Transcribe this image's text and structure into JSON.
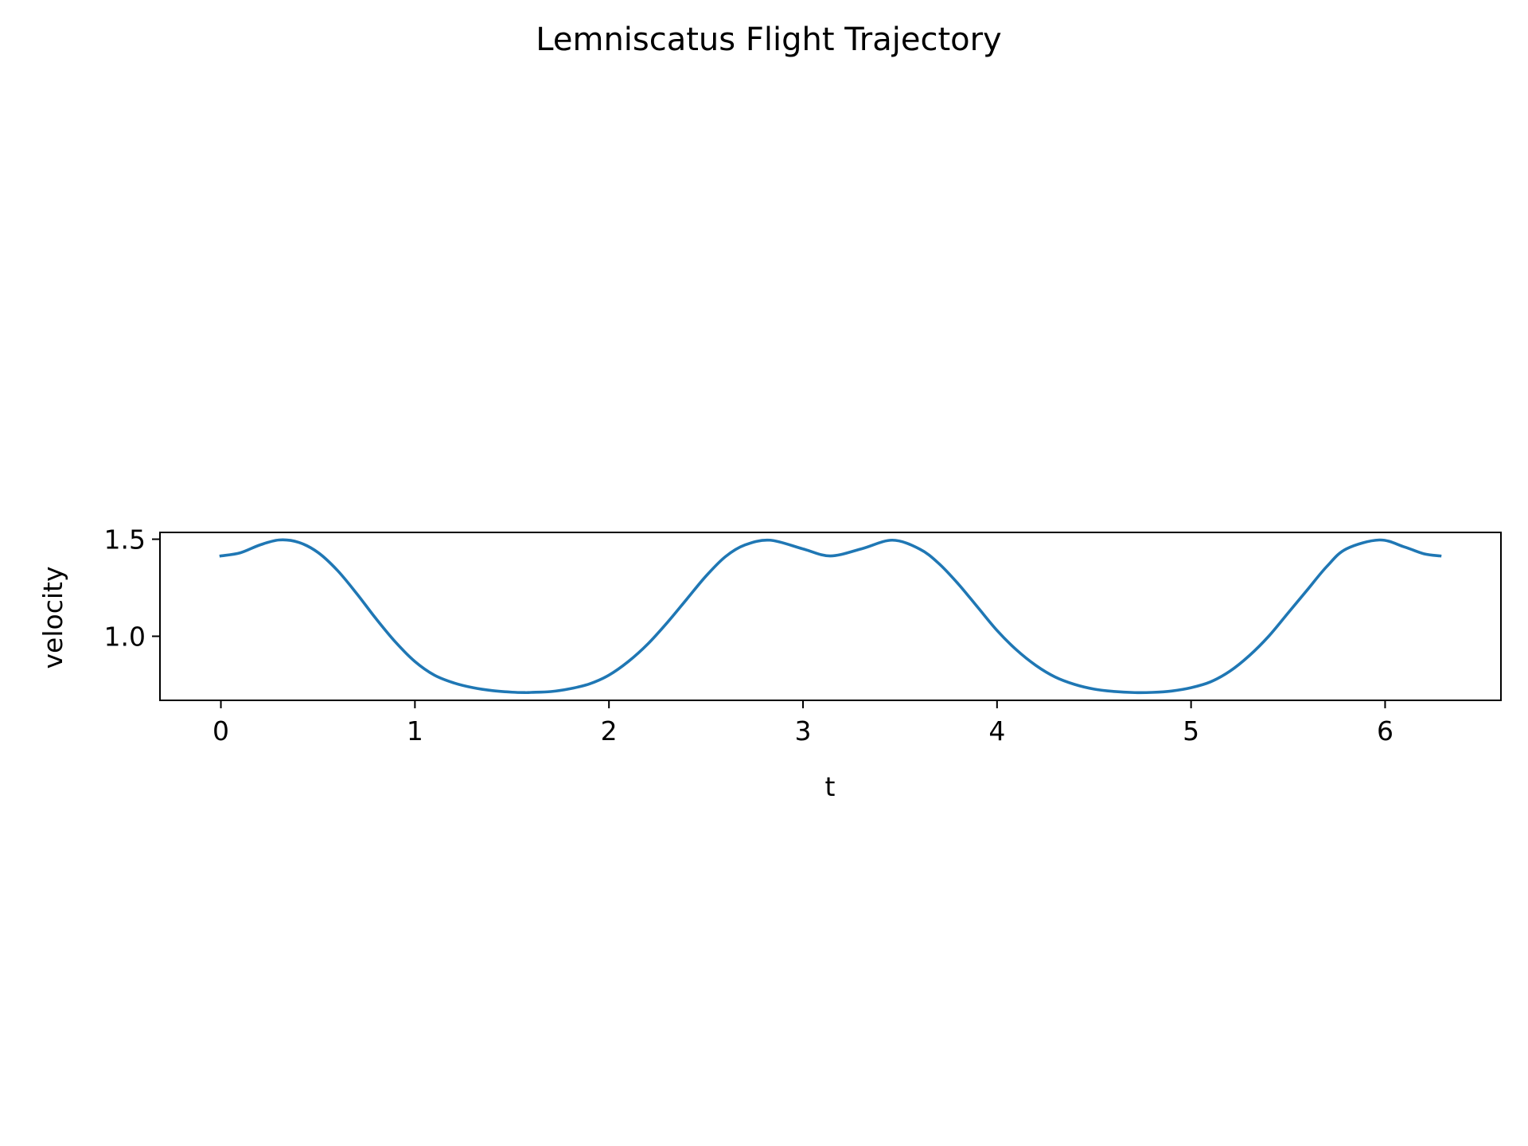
{
  "chart_data": {
    "type": "line",
    "title": "Lemniscatus Flight Trajectory",
    "xlabel": "t",
    "ylabel": "velocity",
    "xlim": [
      -0.314,
      6.597
    ],
    "ylim": [
      0.67,
      1.535
    ],
    "xticks": [
      0,
      1,
      2,
      3,
      4,
      5,
      6
    ],
    "xtick_labels": [
      "0",
      "1",
      "2",
      "3",
      "4",
      "5",
      "6"
    ],
    "yticks": [
      1.0,
      1.5
    ],
    "ytick_labels": [
      "1.0",
      "1.5"
    ],
    "grid": false,
    "legend": "none",
    "series": [
      {
        "color": "#1f77b4",
        "x": [
          0,
          0.1,
          0.2,
          0.3,
          0.4,
          0.5,
          0.6,
          0.7,
          0.8,
          0.9,
          1.0,
          1.1,
          1.2,
          1.3,
          1.4,
          1.5,
          1.57,
          1.6,
          1.7,
          1.8,
          1.9,
          2.0,
          2.1,
          2.2,
          2.3,
          2.4,
          2.5,
          2.6,
          2.7,
          2.83,
          3.0,
          3.14,
          3.3,
          3.46,
          3.6,
          3.7,
          3.8,
          3.9,
          4.0,
          4.1,
          4.2,
          4.3,
          4.4,
          4.5,
          4.6,
          4.71,
          4.8,
          4.9,
          5.0,
          5.1,
          5.2,
          5.3,
          5.4,
          5.5,
          5.6,
          5.7,
          5.8,
          5.97,
          6.1,
          6.2,
          6.283
        ],
        "y": [
          1.414,
          1.43,
          1.47,
          1.496,
          1.484,
          1.432,
          1.34,
          1.22,
          1.09,
          0.97,
          0.87,
          0.8,
          0.76,
          0.735,
          0.72,
          0.712,
          0.71,
          0.711,
          0.715,
          0.73,
          0.755,
          0.8,
          0.87,
          0.96,
          1.07,
          1.19,
          1.31,
          1.41,
          1.47,
          1.495,
          1.45,
          1.414,
          1.45,
          1.495,
          1.45,
          1.375,
          1.27,
          1.15,
          1.03,
          0.93,
          0.85,
          0.79,
          0.752,
          0.728,
          0.716,
          0.71,
          0.711,
          0.718,
          0.735,
          0.765,
          0.82,
          0.9,
          1.0,
          1.12,
          1.24,
          1.36,
          1.45,
          1.496,
          1.46,
          1.425,
          1.414
        ]
      }
    ]
  }
}
